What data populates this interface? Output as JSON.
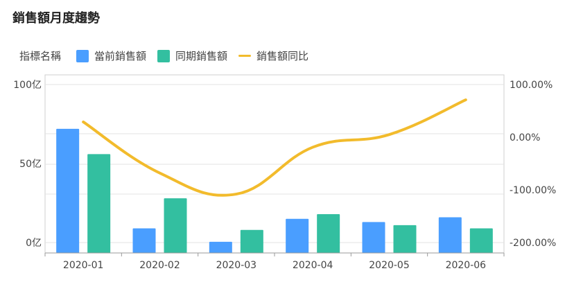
{
  "title": "銷售額月度趨勢",
  "legend": {
    "title": "指標名稱",
    "items": [
      {
        "label": "當前銷售額",
        "color": "#4a9eff",
        "kind": "bar"
      },
      {
        "label": "同期銷售額",
        "color": "#33bfa0",
        "kind": "bar"
      },
      {
        "label": "銷售額同比",
        "color": "#f2bb2c",
        "kind": "line"
      }
    ]
  },
  "chart_data": {
    "type": "bar",
    "categories": [
      "2020-01",
      "2020-02",
      "2020-03",
      "2020-04",
      "2020-05",
      "2020-06"
    ],
    "series": [
      {
        "name": "當前銷售額",
        "type": "bar",
        "axis": "left",
        "color": "#4a9eff",
        "values": [
          72,
          9,
          0.5,
          15,
          13,
          16
        ]
      },
      {
        "name": "同期銷售額",
        "type": "bar",
        "axis": "left",
        "color": "#33bfa0",
        "values": [
          56,
          28,
          8,
          18,
          11,
          9
        ]
      },
      {
        "name": "銷售額同比",
        "type": "line",
        "axis": "right",
        "color": "#f2bb2c",
        "values": [
          29,
          -68,
          -108,
          -19,
          5,
          71
        ]
      }
    ],
    "y_left": {
      "ticks": [
        {
          "value": 0,
          "label": "0亿"
        },
        {
          "value": 50,
          "label": "50亿"
        },
        {
          "value": 100,
          "label": "100亿"
        }
      ],
      "range": [
        0,
        100
      ]
    },
    "y_right": {
      "ticks": [
        {
          "value": 100,
          "label": "100.00%"
        },
        {
          "value": 0,
          "label": "0.00%"
        },
        {
          "value": -100,
          "label": "-100.00%"
        },
        {
          "value": -200,
          "label": "-200.00%"
        }
      ],
      "range": [
        -200,
        100
      ]
    },
    "grid": true,
    "legend_position": "top-left"
  }
}
